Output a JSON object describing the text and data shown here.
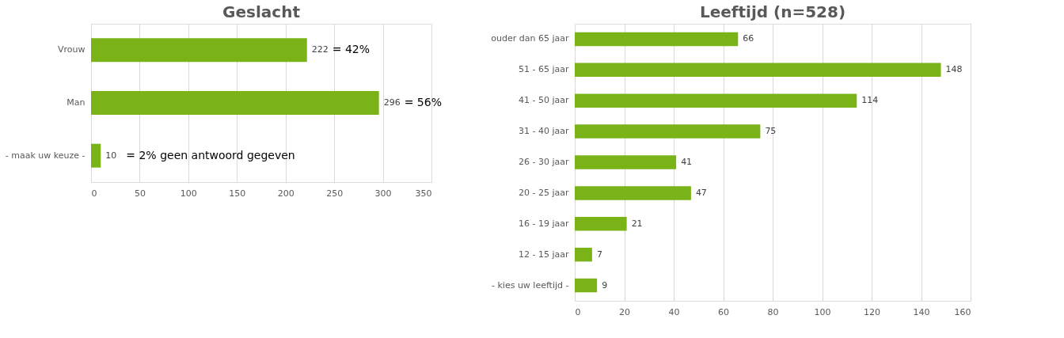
{
  "chart_data": [
    {
      "type": "bar",
      "orientation": "horizontal",
      "title": "Geslacht",
      "categories": [
        "Vrouw",
        "Man",
        "- maak uw keuze -"
      ],
      "values": [
        222,
        296,
        10
      ],
      "color": "#7ab317",
      "xlim": [
        0,
        350
      ],
      "xticks": [
        0,
        50,
        100,
        150,
        200,
        250,
        300,
        350
      ],
      "grid": "x",
      "data_labels": true,
      "annotations": [
        {
          "text": "= 42%",
          "x": 222,
          "y": "Vrouw"
        },
        {
          "text": "= 56%",
          "x": 296,
          "y": "Man"
        },
        {
          "text": "= 2% geen antwoord gegeven",
          "x": 10,
          "y": "- maak uw keuze -"
        }
      ]
    },
    {
      "type": "bar",
      "orientation": "horizontal",
      "title": "Leeftijd (n=528)",
      "categories": [
        "ouder dan 65 jaar",
        "51 - 65 jaar",
        "41 - 50 jaar",
        "31 - 40 jaar",
        "26 - 30 jaar",
        "20 - 25 jaar",
        "16 - 19 jaar",
        "12 - 15 jaar",
        "- kies uw leeftijd -"
      ],
      "values": [
        66,
        148,
        114,
        75,
        41,
        47,
        21,
        7,
        9
      ],
      "color": "#7ab317",
      "xlim": [
        0,
        160
      ],
      "xticks": [
        0,
        20,
        40,
        60,
        80,
        100,
        120,
        140,
        160
      ],
      "grid": "x",
      "data_labels": true
    }
  ]
}
